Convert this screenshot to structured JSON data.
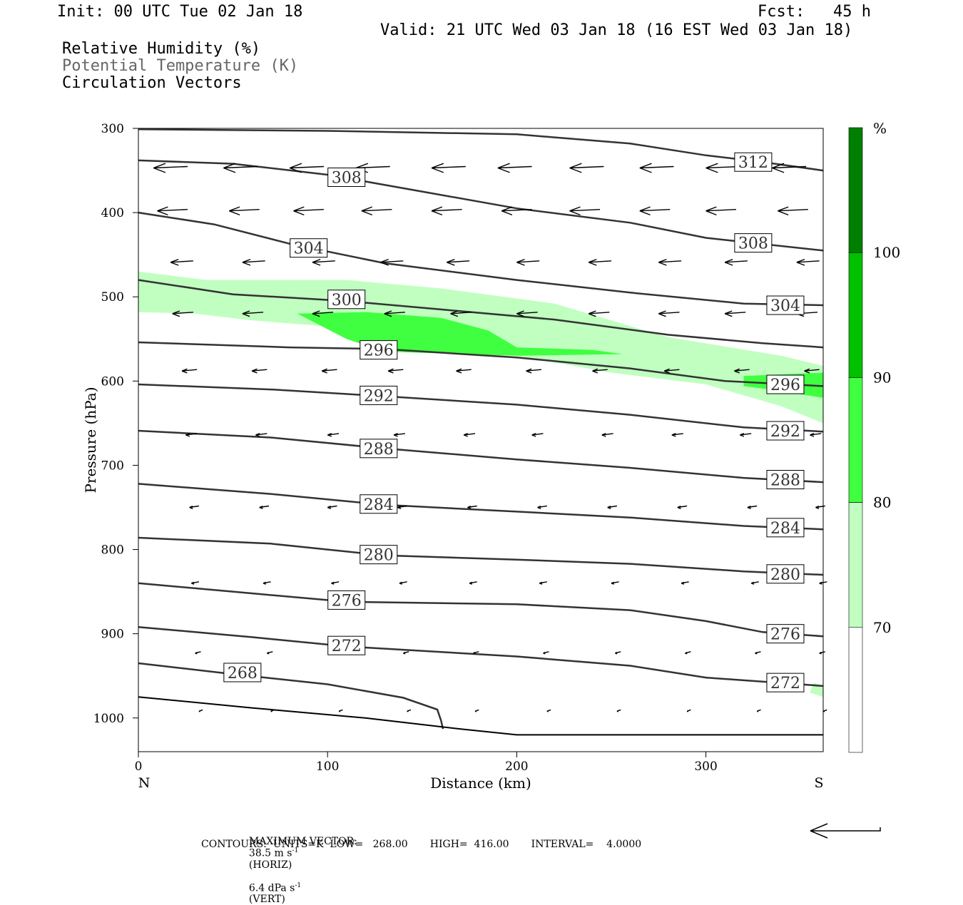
{
  "header": {
    "init": "Init: 00 UTC Tue 02 Jan 18",
    "fcst": "Fcst:   45 h",
    "valid": "Valid: 21 UTC Wed 03 Jan 18 (16 EST Wed 03 Jan 18)"
  },
  "legend": {
    "line1": "Relative Humidity (%)",
    "line2": "Potential Temperature (K)",
    "line3": "Circulation Vectors"
  },
  "footer": {
    "max_vector_label": "MAXIMUM VECTOR:",
    "horiz": "38.5 m s",
    "horiz_suffix": "(HORIZ)",
    "vert": "6.4 dPa s",
    "vert_suffix": "(VERT)",
    "exponent": "-1",
    "contours": "CONTOURS:  UNITS=K  LOW=   268.00       HIGH=  416.00       INTERVAL=    4.0000"
  },
  "colors": {
    "rh70": "#c0ffc0",
    "rh80": "#40ff40",
    "rh90": "#00c000",
    "rh100": "#008000",
    "contour": "#333333"
  },
  "chart_data": {
    "type": "cross-section",
    "xlabel": "Distance (km)",
    "ylabel": "Pressure (hPa)",
    "xlim": [
      0,
      362
    ],
    "ylim": [
      1040,
      300
    ],
    "xticks": [
      0,
      100,
      200,
      300
    ],
    "yticks": [
      300,
      400,
      500,
      600,
      700,
      800,
      900,
      1000
    ],
    "x_end_labels": {
      "left": "N",
      "right": "S"
    },
    "colorbar": {
      "unit": "%",
      "levels": [
        70,
        80,
        90,
        100
      ],
      "colors": [
        "#ffffff",
        "#c0ffc0",
        "#40ff40",
        "#00c000",
        "#008000"
      ]
    },
    "rh_regions": [
      {
        "level": 70,
        "poly": [
          [
            0,
            470
          ],
          [
            36,
            480
          ],
          [
            110,
            480
          ],
          [
            160,
            490
          ],
          [
            220,
            508
          ],
          [
            280,
            548
          ],
          [
            340,
            570
          ],
          [
            362,
            582
          ],
          [
            362,
            650
          ],
          [
            340,
            630
          ],
          [
            300,
            604
          ],
          [
            250,
            590
          ],
          [
            200,
            570
          ],
          [
            150,
            555
          ],
          [
            100,
            535
          ],
          [
            60,
            528
          ],
          [
            30,
            520
          ],
          [
            0,
            518
          ]
        ]
      },
      {
        "level": 80,
        "poly": [
          [
            84,
            520
          ],
          [
            120,
            518
          ],
          [
            160,
            525
          ],
          [
            185,
            540
          ],
          [
            200,
            560
          ],
          [
            240,
            563
          ],
          [
            256,
            568
          ],
          [
            200,
            570
          ],
          [
            130,
            565
          ],
          [
            110,
            550
          ]
        ]
      },
      {
        "level": 80,
        "poly": [
          [
            320,
            594
          ],
          [
            362,
            590
          ],
          [
            362,
            620
          ],
          [
            340,
            612
          ],
          [
            320,
            606
          ]
        ]
      },
      {
        "level": 70,
        "poly": [
          [
            357,
            958
          ],
          [
            362,
            962
          ],
          [
            362,
            975
          ],
          [
            355,
            970
          ]
        ]
      }
    ],
    "theta_contours": [
      {
        "value": 312,
        "points": [
          [
            0,
            301
          ],
          [
            100,
            303
          ],
          [
            200,
            307
          ],
          [
            260,
            318
          ],
          [
            300,
            332
          ],
          [
            330,
            340
          ],
          [
            362,
            350
          ]
        ],
        "label_at": [
          325,
          340
        ]
      },
      {
        "value": 308,
        "points": [
          [
            0,
            338
          ],
          [
            50,
            342
          ],
          [
            100,
            355
          ],
          [
            150,
            375
          ],
          [
            200,
            395
          ],
          [
            260,
            412
          ],
          [
            300,
            430
          ],
          [
            362,
            445
          ]
        ],
        "label_at": [
          110,
          358
        ]
      },
      {
        "value": 308,
        "points": [
          [
            0,
            338
          ],
          [
            50,
            342
          ],
          [
            100,
            355
          ],
          [
            150,
            375
          ],
          [
            200,
            395
          ],
          [
            260,
            412
          ],
          [
            300,
            430
          ],
          [
            362,
            445
          ]
        ],
        "label_at": [
          325,
          436
        ]
      },
      {
        "value": 304,
        "points": [
          [
            0,
            400
          ],
          [
            40,
            414
          ],
          [
            80,
            437
          ],
          [
            130,
            460
          ],
          [
            200,
            480
          ],
          [
            260,
            495
          ],
          [
            320,
            508
          ],
          [
            362,
            510
          ]
        ],
        "label_at": [
          90,
          442
        ]
      },
      {
        "value": 304,
        "points": [
          [
            0,
            400
          ],
          [
            40,
            414
          ],
          [
            80,
            437
          ],
          [
            130,
            460
          ],
          [
            200,
            480
          ],
          [
            260,
            495
          ],
          [
            320,
            508
          ],
          [
            362,
            510
          ]
        ],
        "label_at": [
          342,
          510
        ]
      },
      {
        "value": 300,
        "points": [
          [
            0,
            480
          ],
          [
            50,
            497
          ],
          [
            110,
            505
          ],
          [
            160,
            515
          ],
          [
            220,
            527
          ],
          [
            280,
            545
          ],
          [
            330,
            555
          ],
          [
            362,
            560
          ]
        ],
        "label_at": [
          110,
          503
        ]
      },
      {
        "value": 296,
        "points": [
          [
            0,
            554
          ],
          [
            80,
            560
          ],
          [
            130,
            562
          ],
          [
            200,
            572
          ],
          [
            260,
            585
          ],
          [
            310,
            600
          ],
          [
            362,
            606
          ]
        ],
        "label_at": [
          127,
          563
        ]
      },
      {
        "value": 296,
        "points": [
          [
            0,
            554
          ],
          [
            80,
            560
          ],
          [
            130,
            562
          ],
          [
            200,
            572
          ],
          [
            260,
            585
          ],
          [
            310,
            600
          ],
          [
            362,
            606
          ]
        ],
        "label_at": [
          342,
          604
        ]
      },
      {
        "value": 292,
        "points": [
          [
            0,
            604
          ],
          [
            70,
            610
          ],
          [
            130,
            618
          ],
          [
            200,
            628
          ],
          [
            260,
            640
          ],
          [
            320,
            655
          ],
          [
            362,
            660
          ]
        ],
        "label_at": [
          127,
          617
        ]
      },
      {
        "value": 292,
        "points": [
          [
            0,
            604
          ],
          [
            70,
            610
          ],
          [
            130,
            618
          ],
          [
            200,
            628
          ],
          [
            260,
            640
          ],
          [
            320,
            655
          ],
          [
            362,
            660
          ]
        ],
        "label_at": [
          342,
          659
        ]
      },
      {
        "value": 288,
        "points": [
          [
            0,
            659
          ],
          [
            70,
            667
          ],
          [
            130,
            680
          ],
          [
            200,
            693
          ],
          [
            260,
            703
          ],
          [
            320,
            715
          ],
          [
            362,
            720
          ]
        ],
        "label_at": [
          127,
          680
        ]
      },
      {
        "value": 288,
        "points": [
          [
            0,
            659
          ],
          [
            70,
            667
          ],
          [
            130,
            680
          ],
          [
            200,
            693
          ],
          [
            260,
            703
          ],
          [
            320,
            715
          ],
          [
            362,
            720
          ]
        ],
        "label_at": [
          342,
          717
        ]
      },
      {
        "value": 284,
        "points": [
          [
            0,
            722
          ],
          [
            70,
            734
          ],
          [
            130,
            747
          ],
          [
            200,
            755
          ],
          [
            260,
            762
          ],
          [
            320,
            772
          ],
          [
            362,
            776
          ]
        ],
        "label_at": [
          127,
          746
        ]
      },
      {
        "value": 284,
        "points": [
          [
            0,
            722
          ],
          [
            70,
            734
          ],
          [
            130,
            747
          ],
          [
            200,
            755
          ],
          [
            260,
            762
          ],
          [
            320,
            772
          ],
          [
            362,
            776
          ]
        ],
        "label_at": [
          342,
          774
        ]
      },
      {
        "value": 280,
        "points": [
          [
            0,
            786
          ],
          [
            70,
            793
          ],
          [
            130,
            807
          ],
          [
            200,
            812
          ],
          [
            260,
            817
          ],
          [
            320,
            826
          ],
          [
            362,
            830
          ]
        ],
        "label_at": [
          127,
          806
        ]
      },
      {
        "value": 280,
        "points": [
          [
            0,
            786
          ],
          [
            70,
            793
          ],
          [
            130,
            807
          ],
          [
            200,
            812
          ],
          [
            260,
            817
          ],
          [
            320,
            826
          ],
          [
            362,
            830
          ]
        ],
        "label_at": [
          342,
          829
        ]
      },
      {
        "value": 276,
        "points": [
          [
            0,
            840
          ],
          [
            60,
            852
          ],
          [
            110,
            862
          ],
          [
            200,
            865
          ],
          [
            260,
            872
          ],
          [
            300,
            885
          ],
          [
            330,
            898
          ],
          [
            362,
            903
          ]
        ],
        "label_at": [
          110,
          860
        ]
      },
      {
        "value": 276,
        "points": [
          [
            0,
            840
          ],
          [
            60,
            852
          ],
          [
            110,
            862
          ],
          [
            200,
            865
          ],
          [
            260,
            872
          ],
          [
            300,
            885
          ],
          [
            330,
            898
          ],
          [
            362,
            903
          ]
        ],
        "label_at": [
          342,
          900
        ]
      },
      {
        "value": 272,
        "points": [
          [
            0,
            892
          ],
          [
            60,
            904
          ],
          [
            110,
            915
          ],
          [
            200,
            927
          ],
          [
            260,
            938
          ],
          [
            300,
            952
          ],
          [
            362,
            962
          ]
        ],
        "label_at": [
          110,
          914
        ]
      },
      {
        "value": 272,
        "points": [
          [
            0,
            892
          ],
          [
            60,
            904
          ],
          [
            110,
            915
          ],
          [
            200,
            927
          ],
          [
            260,
            938
          ],
          [
            300,
            952
          ],
          [
            362,
            962
          ]
        ],
        "label_at": [
          342,
          958
        ]
      },
      {
        "value": 268,
        "points": [
          [
            0,
            935
          ],
          [
            50,
            948
          ],
          [
            100,
            960
          ],
          [
            140,
            976
          ],
          [
            158,
            990
          ],
          [
            160,
            1003
          ],
          [
            161,
            1013
          ]
        ],
        "label_at": [
          55,
          946
        ]
      }
    ],
    "theta_surface": {
      "points": [
        [
          0,
          975
        ],
        [
          60,
          988
        ],
        [
          120,
          1000
        ],
        [
          170,
          1013
        ],
        [
          200,
          1020
        ],
        [
          362,
          1020
        ]
      ]
    },
    "vector_rows": [
      {
        "p": 347,
        "xs": [
          8,
          45,
          80,
          115,
          155,
          190,
          228,
          265,
          300,
          335
        ],
        "len_km": 18
      },
      {
        "p": 398,
        "xs": [
          10,
          48,
          82,
          118,
          155,
          192,
          228,
          265,
          300,
          338
        ],
        "len_km": 16
      },
      {
        "p": 459,
        "xs": [
          17,
          55,
          92,
          128,
          163,
          200,
          238,
          275,
          310,
          348
        ],
        "len_km": 12
      },
      {
        "p": 520,
        "xs": [
          18,
          55,
          92,
          130,
          165,
          200,
          238,
          275,
          310,
          348
        ],
        "len_km": 11
      },
      {
        "p": 588,
        "xs": [
          23,
          60,
          97,
          132,
          168,
          205,
          240,
          278,
          315,
          352
        ],
        "len_km": 8
      },
      {
        "p": 664,
        "xs": [
          25,
          62,
          100,
          135,
          172,
          208,
          245,
          282,
          318,
          355
        ],
        "len_km": 6
      },
      {
        "p": 750,
        "xs": [
          27,
          64,
          100,
          137,
          174,
          211,
          248,
          285,
          322,
          358
        ],
        "len_km": 5
      },
      {
        "p": 840,
        "xs": [
          28,
          66,
          102,
          138,
          175,
          212,
          250,
          287,
          324,
          360
        ],
        "len_km": 4
      },
      {
        "p": 923,
        "xs": [
          30,
          68,
          104,
          140,
          177,
          214,
          252,
          289,
          326,
          360
        ],
        "len_km": 3
      },
      {
        "p": 992,
        "xs": [
          32,
          70,
          106,
          142,
          178,
          216,
          253,
          290,
          327,
          362
        ],
        "len_km": 2
      }
    ]
  }
}
